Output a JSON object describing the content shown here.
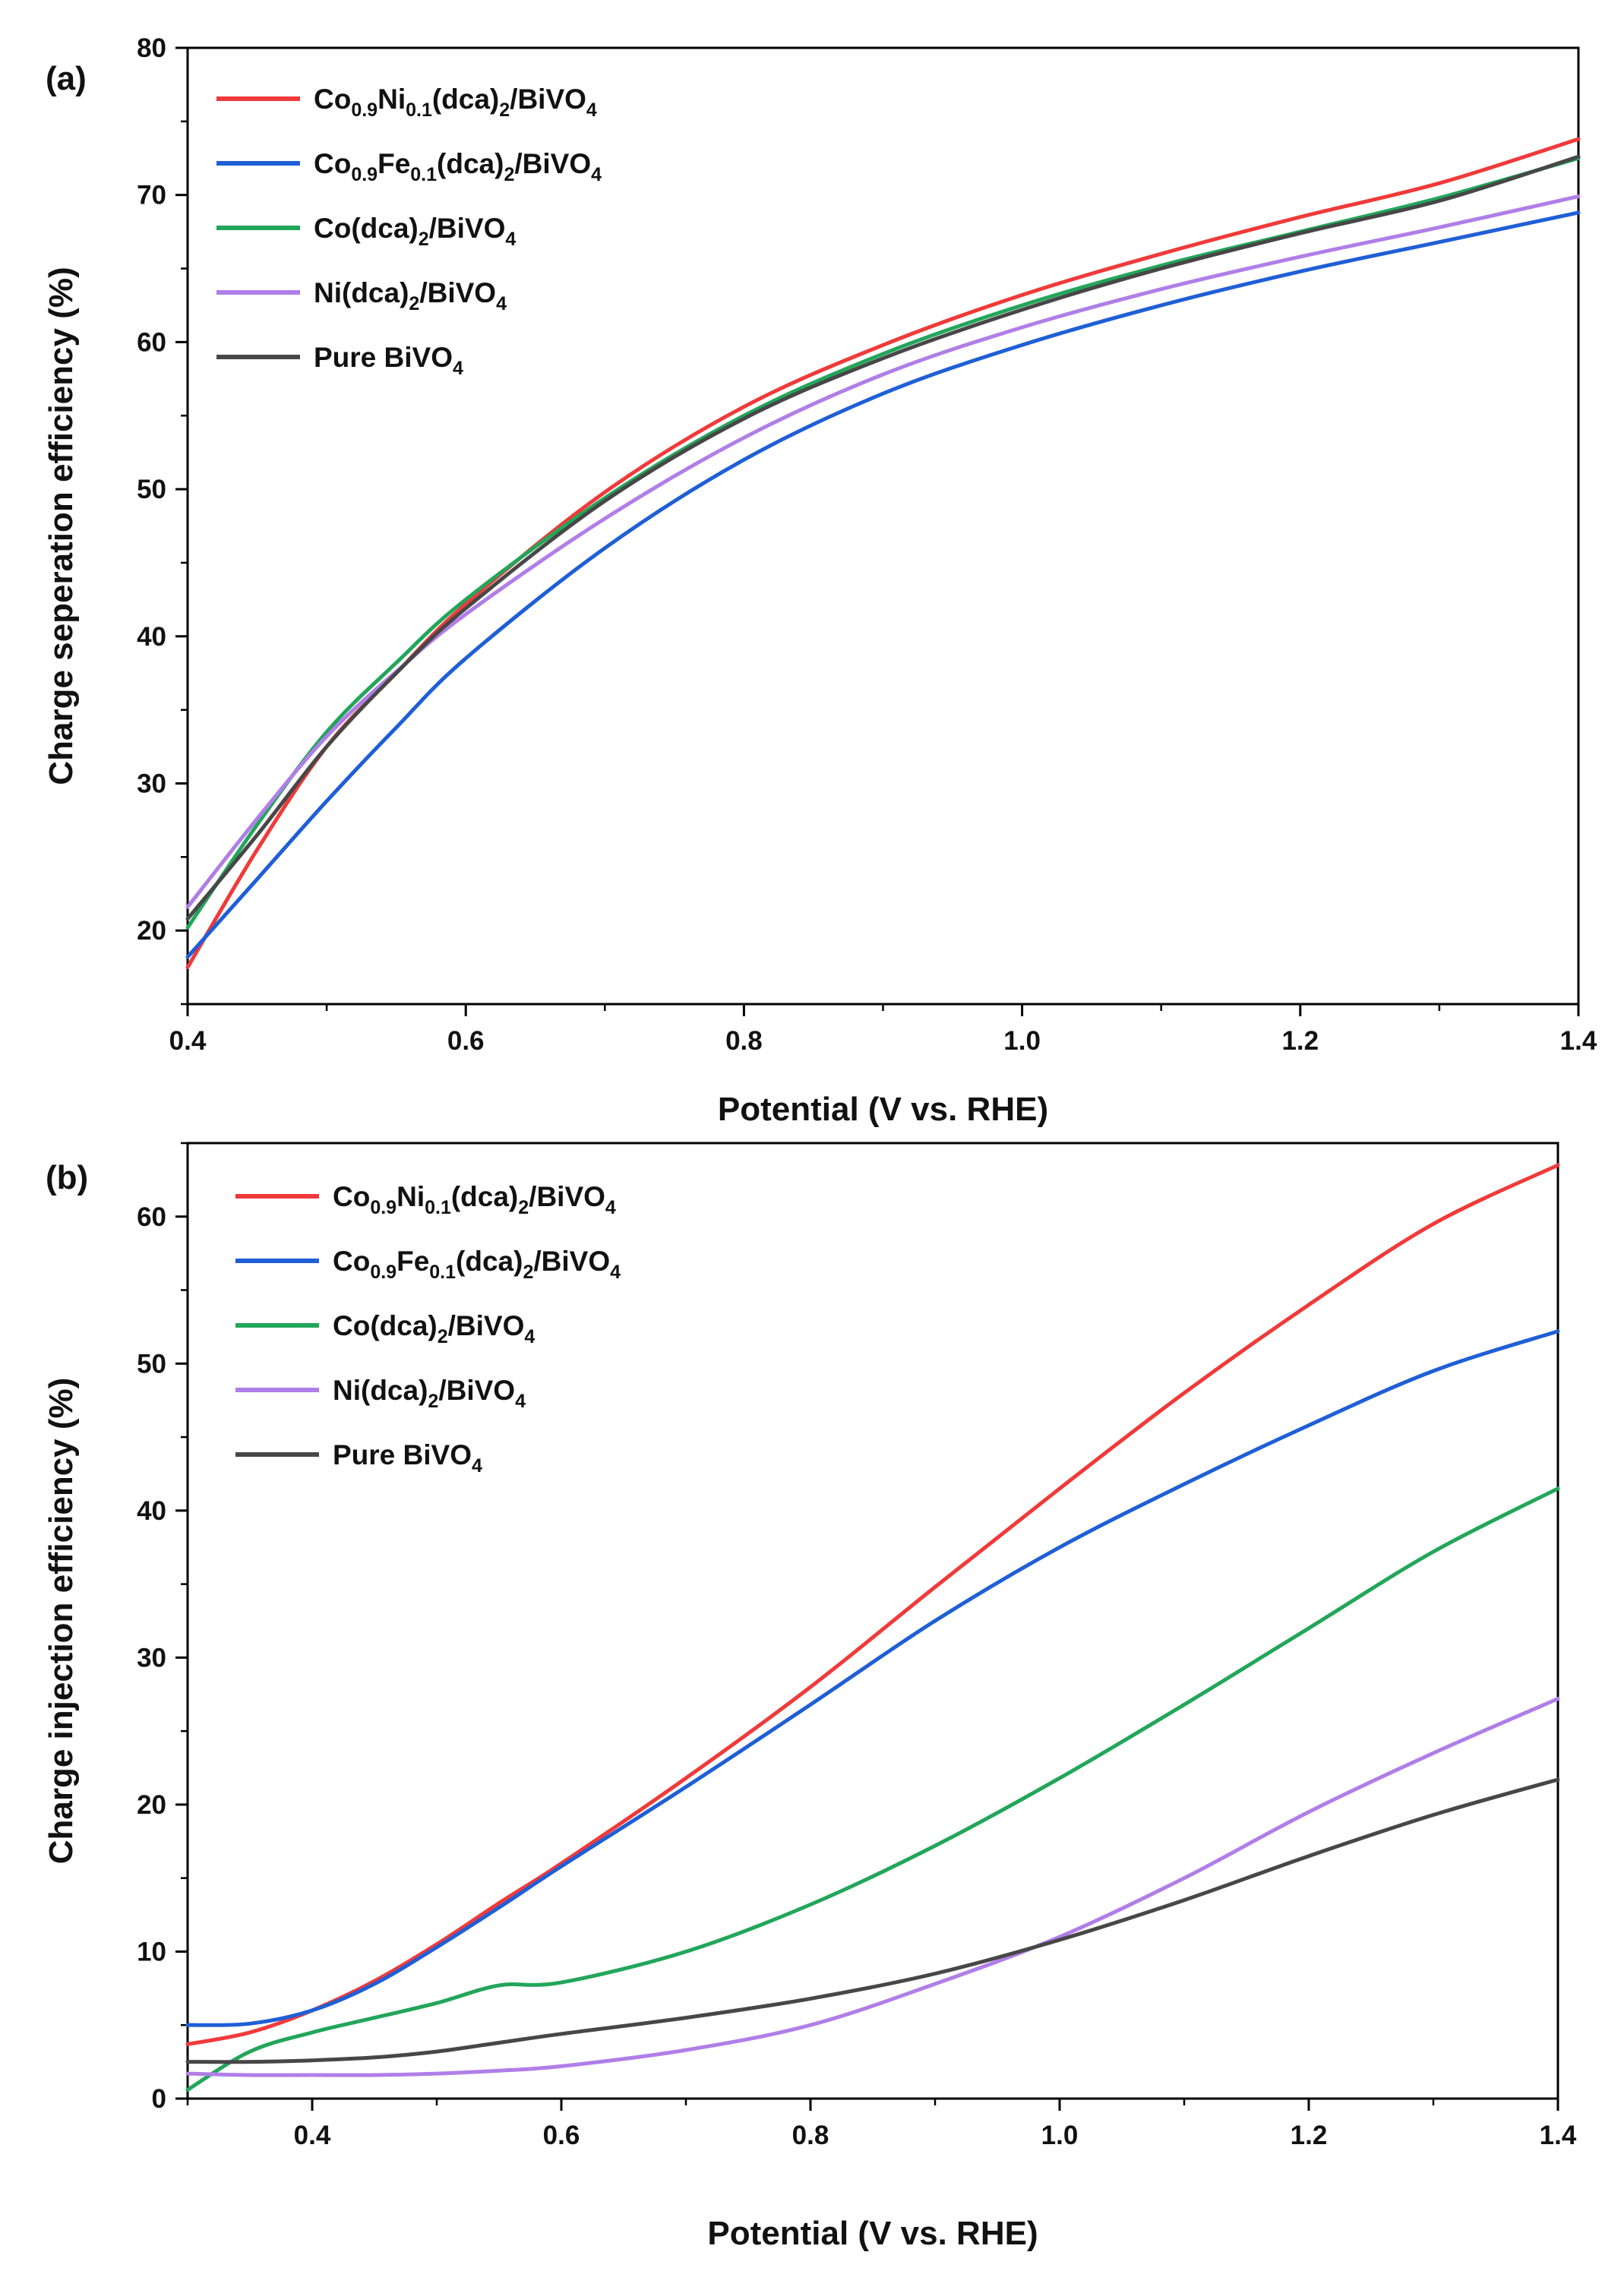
{
  "chart_data": [
    {
      "type": "line",
      "panel_label": "(a)",
      "xlabel": "Potential (V vs. RHE)",
      "ylabel": "Charge seperation efficiency (%)",
      "xlim": [
        0.4,
        1.4
      ],
      "ylim": [
        15,
        80
      ],
      "xticks": [
        0.4,
        0.6,
        0.8,
        1.0,
        1.2,
        1.4
      ],
      "xtick_labels": [
        "0.4",
        "0.6",
        "0.8",
        "1.0",
        "1.2",
        "1.4"
      ],
      "yticks": [
        20,
        30,
        40,
        50,
        60,
        70,
        80
      ],
      "ytick_labels": [
        "20",
        "30",
        "40",
        "50",
        "60",
        "70",
        "80"
      ],
      "grid": false,
      "legend": "top-left",
      "series": [
        {
          "name_parts": [
            [
              "Co",
              ""
            ],
            [
              "0.9",
              "sub"
            ],
            [
              "Ni",
              ""
            ],
            [
              "0.1",
              "sub"
            ],
            [
              "(dca)",
              ""
            ],
            [
              "2",
              "sub"
            ],
            [
              "/BiVO",
              ""
            ],
            [
              "4",
              "sub"
            ]
          ],
          "color": "#f03a3a",
          "x": [
            0.4,
            0.45,
            0.5,
            0.55,
            0.6,
            0.7,
            0.8,
            0.9,
            1.0,
            1.1,
            1.2,
            1.3,
            1.4
          ],
          "y": [
            17.5,
            25.5,
            32.5,
            37.5,
            42.2,
            49.8,
            55.6,
            59.8,
            63.2,
            66.0,
            68.5,
            70.8,
            73.8
          ]
        },
        {
          "name_parts": [
            [
              "Co",
              ""
            ],
            [
              "0.9",
              "sub"
            ],
            [
              "Fe",
              ""
            ],
            [
              "0.1",
              "sub"
            ],
            [
              "(dca)",
              ""
            ],
            [
              "2",
              "sub"
            ],
            [
              "/BiVO",
              ""
            ],
            [
              "4",
              "sub"
            ]
          ],
          "color": "#1f5fd6",
          "x": [
            0.4,
            0.45,
            0.5,
            0.55,
            0.6,
            0.7,
            0.8,
            0.9,
            1.0,
            1.1,
            1.2,
            1.3,
            1.4
          ],
          "y": [
            18.2,
            23.5,
            28.8,
            33.8,
            38.5,
            46.0,
            52.0,
            56.5,
            59.8,
            62.5,
            64.8,
            66.8,
            68.8
          ]
        },
        {
          "name_parts": [
            [
              "Co(dca)",
              ""
            ],
            [
              "2",
              "sub"
            ],
            [
              "/BiVO",
              ""
            ],
            [
              "4",
              "sub"
            ]
          ],
          "color": "#22a65a",
          "x": [
            0.4,
            0.45,
            0.5,
            0.55,
            0.6,
            0.7,
            0.8,
            0.9,
            1.0,
            1.1,
            1.2,
            1.3,
            1.4
          ],
          "y": [
            20.2,
            27.2,
            33.5,
            38.2,
            42.5,
            49.4,
            55.0,
            59.2,
            62.5,
            65.2,
            67.5,
            69.8,
            72.5
          ]
        },
        {
          "name_parts": [
            [
              "Ni(dca)",
              ""
            ],
            [
              "2",
              "sub"
            ],
            [
              "/BiVO",
              ""
            ],
            [
              "4",
              "sub"
            ]
          ],
          "color": "#b07ee8",
          "x": [
            0.4,
            0.45,
            0.5,
            0.55,
            0.6,
            0.7,
            0.8,
            0.9,
            1.0,
            1.1,
            1.2,
            1.3,
            1.4
          ],
          "y": [
            21.6,
            27.6,
            33.2,
            37.6,
            41.5,
            48.0,
            53.5,
            57.8,
            61.0,
            63.6,
            65.8,
            67.8,
            69.9
          ]
        },
        {
          "name_parts": [
            [
              "Pure BiVO",
              ""
            ],
            [
              "4",
              "sub"
            ]
          ],
          "color": "#474747",
          "x": [
            0.4,
            0.45,
            0.5,
            0.55,
            0.6,
            0.7,
            0.8,
            0.9,
            1.0,
            1.1,
            1.2,
            1.3,
            1.4
          ],
          "y": [
            20.8,
            26.5,
            32.5,
            37.5,
            41.9,
            49.2,
            54.8,
            58.9,
            62.2,
            65.0,
            67.4,
            69.6,
            72.6
          ]
        }
      ]
    },
    {
      "type": "line",
      "panel_label": "(b)",
      "xlabel": "Potential (V vs. RHE)",
      "ylabel": "Charge injection efficiency (%)",
      "xlim": [
        0.3,
        1.4
      ],
      "ylim": [
        0,
        65
      ],
      "xticks": [
        0.4,
        0.6,
        0.8,
        1.0,
        1.2,
        1.4
      ],
      "xtick_labels": [
        "0.4",
        "0.6",
        "0.8",
        "1.0",
        "1.2",
        "1.4"
      ],
      "yticks": [
        0,
        10,
        20,
        30,
        40,
        50,
        60
      ],
      "ytick_labels": [
        "0",
        "10",
        "20",
        "30",
        "40",
        "50",
        "60"
      ],
      "grid": false,
      "legend": "top-left",
      "series": [
        {
          "name_parts": [
            [
              "Co",
              ""
            ],
            [
              "0.9",
              "sub"
            ],
            [
              "Ni",
              ""
            ],
            [
              "0.1",
              "sub"
            ],
            [
              "(dca)",
              ""
            ],
            [
              "2",
              "sub"
            ],
            [
              "/BiVO",
              ""
            ],
            [
              "4",
              "sub"
            ]
          ],
          "color": "#f03a3a",
          "x": [
            0.3,
            0.35,
            0.4,
            0.45,
            0.5,
            0.55,
            0.6,
            0.7,
            0.8,
            0.9,
            1.0,
            1.1,
            1.2,
            1.3,
            1.4
          ],
          "y": [
            3.7,
            4.5,
            6.0,
            8.0,
            10.5,
            13.3,
            16.0,
            21.8,
            28.0,
            34.8,
            41.5,
            48.0,
            54.0,
            59.5,
            63.5
          ]
        },
        {
          "name_parts": [
            [
              "Co",
              ""
            ],
            [
              "0.9",
              "sub"
            ],
            [
              "Fe",
              ""
            ],
            [
              "0.1",
              "sub"
            ],
            [
              "(dca)",
              ""
            ],
            [
              "2",
              "sub"
            ],
            [
              "/BiVO",
              ""
            ],
            [
              "4",
              "sub"
            ]
          ],
          "color": "#1f5fd6",
          "x": [
            0.3,
            0.35,
            0.4,
            0.45,
            0.5,
            0.55,
            0.6,
            0.7,
            0.8,
            0.9,
            1.0,
            1.1,
            1.2,
            1.3,
            1.4
          ],
          "y": [
            5.0,
            5.1,
            6.0,
            7.8,
            10.3,
            13.0,
            15.8,
            21.2,
            26.8,
            32.5,
            37.5,
            41.8,
            45.8,
            49.5,
            52.2
          ]
        },
        {
          "name_parts": [
            [
              "Co(dca)",
              ""
            ],
            [
              "2",
              "sub"
            ],
            [
              "/BiVO",
              ""
            ],
            [
              "4",
              "sub"
            ]
          ],
          "color": "#22a65a",
          "x": [
            0.3,
            0.35,
            0.4,
            0.45,
            0.5,
            0.55,
            0.6,
            0.7,
            0.8,
            0.9,
            1.0,
            1.1,
            1.2,
            1.3,
            1.4
          ],
          "y": [
            0.6,
            3.2,
            4.5,
            5.5,
            6.5,
            7.7,
            7.9,
            10.0,
            13.2,
            17.2,
            21.8,
            26.8,
            32.0,
            37.2,
            41.5
          ]
        },
        {
          "name_parts": [
            [
              "Ni(dca)",
              ""
            ],
            [
              "2",
              "sub"
            ],
            [
              "/BiVO",
              ""
            ],
            [
              "4",
              "sub"
            ]
          ],
          "color": "#b07ee8",
          "x": [
            0.3,
            0.35,
            0.4,
            0.45,
            0.5,
            0.55,
            0.6,
            0.7,
            0.8,
            0.9,
            1.0,
            1.1,
            1.2,
            1.3,
            1.4
          ],
          "y": [
            1.7,
            1.6,
            1.6,
            1.6,
            1.7,
            1.9,
            2.2,
            3.3,
            5.0,
            7.8,
            11.0,
            15.0,
            19.5,
            23.5,
            27.2
          ]
        },
        {
          "name_parts": [
            [
              "Pure BiVO",
              ""
            ],
            [
              "4",
              "sub"
            ]
          ],
          "color": "#474747",
          "x": [
            0.3,
            0.35,
            0.4,
            0.45,
            0.5,
            0.55,
            0.6,
            0.7,
            0.8,
            0.9,
            1.0,
            1.1,
            1.2,
            1.3,
            1.4
          ],
          "y": [
            2.5,
            2.5,
            2.6,
            2.8,
            3.2,
            3.8,
            4.4,
            5.5,
            6.8,
            8.5,
            10.8,
            13.5,
            16.5,
            19.3,
            21.7
          ]
        }
      ]
    }
  ]
}
